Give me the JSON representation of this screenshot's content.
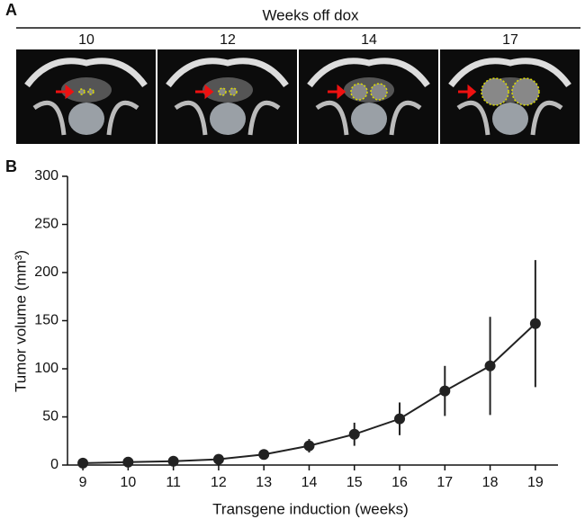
{
  "panel_a": {
    "label": "A",
    "title": "Weeks off dox",
    "columns": [
      "10",
      "12",
      "14",
      "17"
    ]
  },
  "chart_data": {
    "type": "line",
    "panel_label": "B",
    "x_label": "Transgene induction (weeks)",
    "y_label": "Tumor volume (mm³)",
    "x": [
      9,
      10,
      11,
      12,
      13,
      14,
      15,
      16,
      17,
      18,
      19
    ],
    "values": [
      2,
      3,
      4,
      6,
      11,
      20,
      32,
      48,
      77,
      103,
      147
    ],
    "errors": [
      1,
      1,
      1.5,
      2,
      3,
      7,
      12,
      17,
      26,
      51,
      66
    ],
    "color": "#222222",
    "xlim": [
      8.66,
      19.5
    ],
    "xticks": [
      9,
      10,
      11,
      12,
      13,
      14,
      15,
      16,
      17,
      18,
      19
    ],
    "ylim": [
      0,
      300
    ],
    "yticks": [
      0,
      50,
      100,
      150,
      200,
      250,
      300
    ],
    "grid": false
  }
}
